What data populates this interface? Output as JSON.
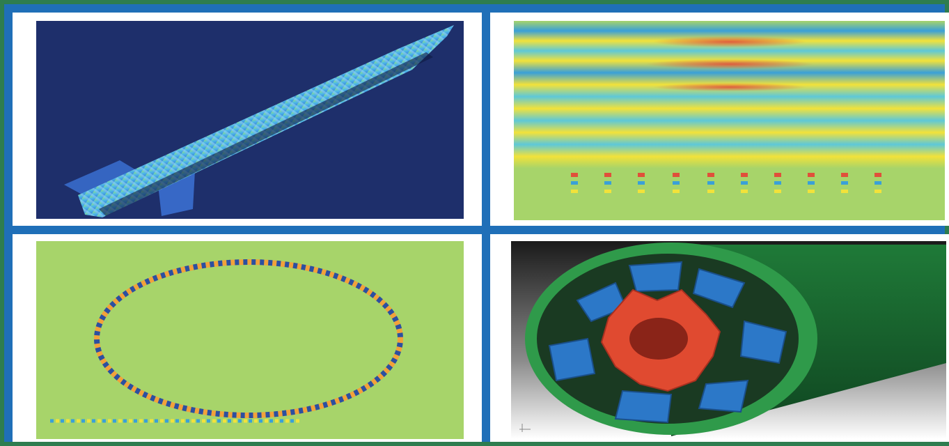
{
  "figure": {
    "panels": [
      {
        "id": "rocket-simulation",
        "background": "#1e2f6b"
      },
      {
        "id": "wave-field-simulation",
        "background": "#a7d46a"
      },
      {
        "id": "ring-scatter-simulation",
        "background": "#a7d46a"
      },
      {
        "id": "motor-cross-section-render",
        "background": "#ffffff"
      }
    ],
    "colors": {
      "frame_green": "#2e7d4f",
      "frame_blue": "#1f6fb8",
      "sim_blue": "#3aa0d8",
      "sim_yellow": "#f2e23a",
      "sim_red": "#e0503a",
      "rotor_red": "#e04a30",
      "stator_blue": "#2c78c8",
      "housing_green": "#2f9a4a"
    }
  }
}
